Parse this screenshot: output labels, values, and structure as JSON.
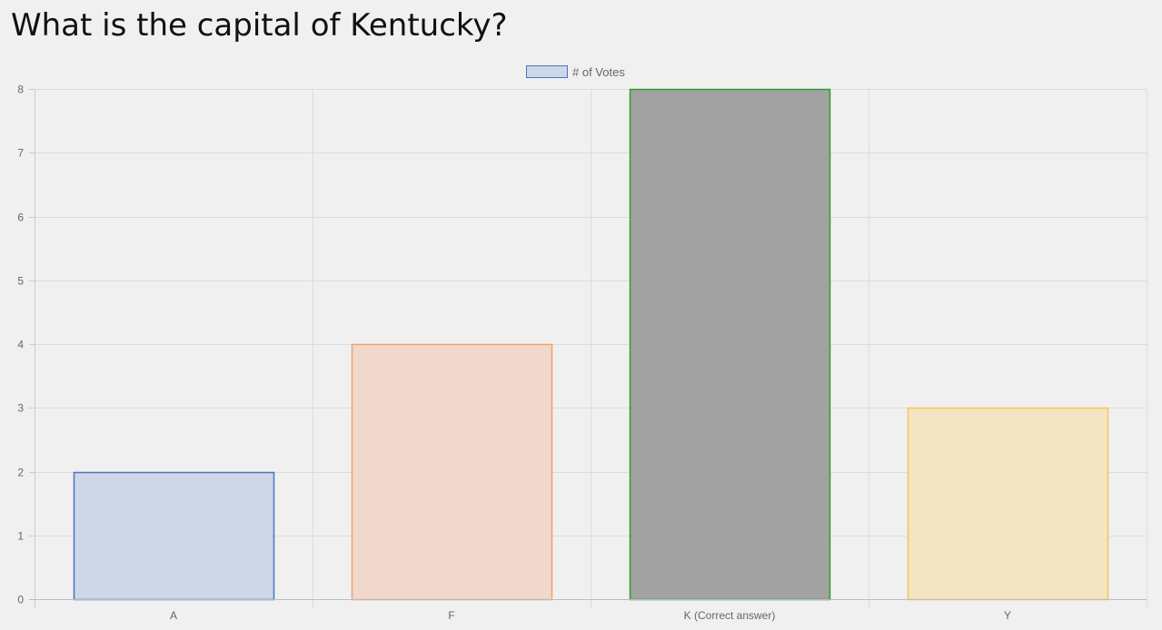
{
  "page": {
    "question": "What is the capital of Kentucky?"
  },
  "chart_data": {
    "type": "bar",
    "title": "",
    "xlabel": "",
    "ylabel": "",
    "categories": [
      "A",
      "F",
      "K (Correct answer)",
      "Y"
    ],
    "series": [
      {
        "name": "# of Votes",
        "values": [
          2,
          4,
          8,
          3
        ],
        "fill_colors": [
          "#cdd7e8",
          "#f0d9cc",
          "#a2a2a2",
          "#f3e5c3"
        ],
        "border_colors": [
          "#4a74be",
          "#f3a06b",
          "#2e9c2e",
          "#f5c74a"
        ]
      }
    ],
    "ylim": [
      0,
      8
    ],
    "yticks": [
      "0",
      "1",
      "2",
      "3",
      "4",
      "5",
      "6",
      "7",
      "8"
    ],
    "grid": true,
    "legend_position": "top",
    "legend_swatch": {
      "fill": "#cdd7e8",
      "border": "#4a74be"
    }
  }
}
